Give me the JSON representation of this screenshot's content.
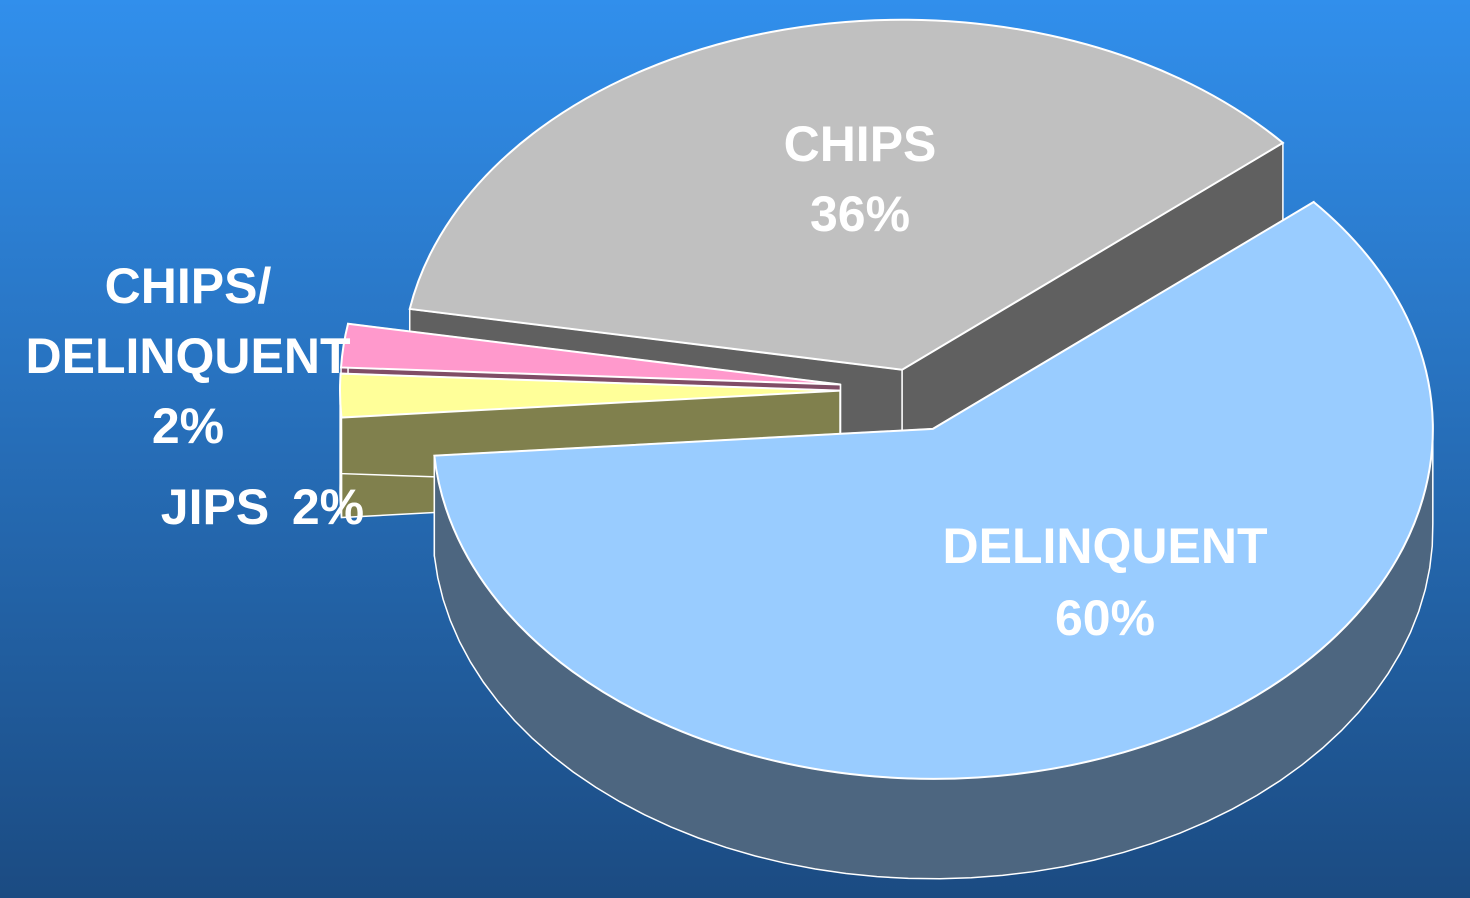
{
  "chart_data": {
    "type": "pie3d",
    "categories": [
      "CHIPS",
      "DELINQUENT",
      "JIPS",
      "CHIPS/DELINQUENT"
    ],
    "values": [
      36,
      60,
      2,
      2
    ],
    "value_labels": [
      "36%",
      "60%",
      "2%",
      "2%"
    ],
    "colors": [
      "#c0c0c0",
      "#99ccff",
      "#ffff99",
      "#ff99cc"
    ]
  }
}
